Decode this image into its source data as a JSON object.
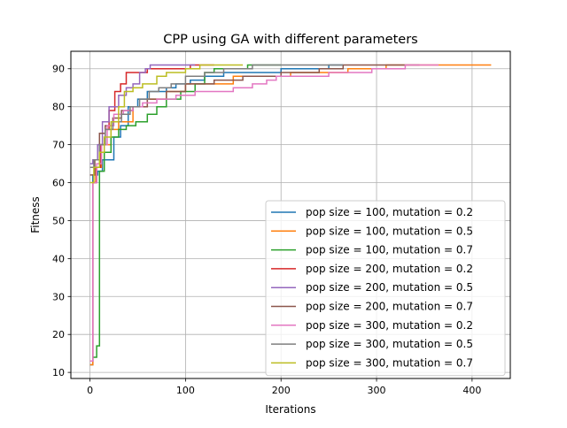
{
  "chart_data": {
    "type": "line",
    "title": "CPP using GA with  different parameters",
    "xlabel": "Iterations",
    "ylabel": "Fitness",
    "xlim": [
      -20,
      440
    ],
    "ylim": [
      8.4,
      94.6
    ],
    "xticks": [
      0,
      100,
      200,
      300,
      400
    ],
    "yticks": [
      10,
      20,
      30,
      40,
      50,
      60,
      70,
      80,
      90
    ],
    "grid": true,
    "legend_position": "lower right",
    "series": [
      {
        "name": "pop size = 100, mutation = 0.2",
        "color": "#1f77b4",
        "points": [
          [
            0,
            12
          ],
          [
            3,
            62
          ],
          [
            8,
            63
          ],
          [
            13,
            66
          ],
          [
            20,
            66
          ],
          [
            25,
            72
          ],
          [
            32,
            75
          ],
          [
            40,
            80
          ],
          [
            50,
            82
          ],
          [
            60,
            84
          ],
          [
            70,
            84
          ],
          [
            80,
            85
          ],
          [
            90,
            86
          ],
          [
            105,
            87
          ],
          [
            120,
            88
          ],
          [
            140,
            89
          ],
          [
            170,
            89
          ],
          [
            200,
            90
          ],
          [
            240,
            90
          ],
          [
            250,
            91
          ],
          [
            265,
            91
          ]
        ]
      },
      {
        "name": "pop size = 100, mutation = 0.5",
        "color": "#ff7f0e",
        "points": [
          [
            0,
            12
          ],
          [
            3,
            60
          ],
          [
            6,
            64
          ],
          [
            12,
            70
          ],
          [
            22,
            74
          ],
          [
            30,
            76
          ],
          [
            45,
            80
          ],
          [
            60,
            82
          ],
          [
            80,
            84
          ],
          [
            100,
            86
          ],
          [
            120,
            86
          ],
          [
            150,
            88
          ],
          [
            190,
            88
          ],
          [
            210,
            89
          ],
          [
            250,
            89
          ],
          [
            270,
            90
          ],
          [
            295,
            90
          ],
          [
            310,
            91
          ],
          [
            420,
            91
          ]
        ]
      },
      {
        "name": "pop size = 100, mutation = 0.7",
        "color": "#2ca02c",
        "points": [
          [
            0,
            13
          ],
          [
            3,
            14
          ],
          [
            7,
            17
          ],
          [
            10,
            63
          ],
          [
            15,
            68
          ],
          [
            22,
            72
          ],
          [
            30,
            74
          ],
          [
            38,
            75
          ],
          [
            48,
            76
          ],
          [
            60,
            78
          ],
          [
            70,
            80
          ],
          [
            80,
            82
          ],
          [
            95,
            84
          ],
          [
            110,
            86
          ],
          [
            120,
            89
          ],
          [
            130,
            90
          ],
          [
            150,
            90
          ],
          [
            165,
            91
          ],
          [
            200,
            91
          ]
        ]
      },
      {
        "name": "pop size = 200, mutation = 0.2",
        "color": "#d62728",
        "points": [
          [
            0,
            13
          ],
          [
            3,
            60
          ],
          [
            7,
            64
          ],
          [
            11,
            70
          ],
          [
            16,
            74
          ],
          [
            20,
            79
          ],
          [
            26,
            84
          ],
          [
            32,
            86
          ],
          [
            38,
            89
          ],
          [
            50,
            89
          ],
          [
            60,
            90
          ],
          [
            100,
            90
          ],
          [
            105,
            91
          ],
          [
            130,
            91
          ]
        ]
      },
      {
        "name": "pop size = 200, mutation = 0.5",
        "color": "#9467bd",
        "points": [
          [
            0,
            65
          ],
          [
            3,
            66
          ],
          [
            8,
            70
          ],
          [
            13,
            76
          ],
          [
            20,
            80
          ],
          [
            30,
            83
          ],
          [
            38,
            85
          ],
          [
            45,
            86
          ],
          [
            52,
            89
          ],
          [
            58,
            90
          ],
          [
            63,
            91
          ],
          [
            110,
            91
          ]
        ]
      },
      {
        "name": "pop size = 200, mutation = 0.7",
        "color": "#8c564b",
        "points": [
          [
            0,
            62
          ],
          [
            5,
            66
          ],
          [
            10,
            73
          ],
          [
            16,
            75
          ],
          [
            24,
            77
          ],
          [
            33,
            79
          ],
          [
            45,
            80
          ],
          [
            60,
            82
          ],
          [
            80,
            84
          ],
          [
            100,
            86
          ],
          [
            130,
            87
          ],
          [
            160,
            88
          ],
          [
            200,
            89
          ],
          [
            240,
            90
          ],
          [
            265,
            91
          ],
          [
            345,
            91
          ]
        ]
      },
      {
        "name": "pop size = 300, mutation = 0.2",
        "color": "#e377c2",
        "points": [
          [
            0,
            13
          ],
          [
            3,
            60
          ],
          [
            7,
            65
          ],
          [
            12,
            70
          ],
          [
            18,
            75
          ],
          [
            25,
            78
          ],
          [
            35,
            79
          ],
          [
            45,
            80
          ],
          [
            55,
            81
          ],
          [
            70,
            82
          ],
          [
            90,
            83
          ],
          [
            110,
            84
          ],
          [
            130,
            84
          ],
          [
            150,
            85
          ],
          [
            170,
            86
          ],
          [
            185,
            87
          ],
          [
            195,
            88
          ],
          [
            210,
            88
          ],
          [
            250,
            89
          ],
          [
            280,
            89
          ],
          [
            295,
            90
          ],
          [
            330,
            91
          ],
          [
            365,
            91
          ]
        ]
      },
      {
        "name": "pop size = 300, mutation = 0.5",
        "color": "#7f7f7f",
        "points": [
          [
            0,
            64
          ],
          [
            4,
            66
          ],
          [
            10,
            70
          ],
          [
            16,
            74
          ],
          [
            24,
            76
          ],
          [
            33,
            78
          ],
          [
            42,
            80
          ],
          [
            52,
            82
          ],
          [
            62,
            84
          ],
          [
            72,
            85
          ],
          [
            85,
            86
          ],
          [
            100,
            88
          ],
          [
            120,
            89
          ],
          [
            140,
            90
          ],
          [
            170,
            91
          ],
          [
            265,
            91
          ]
        ]
      },
      {
        "name": "pop size = 300, mutation = 0.7",
        "color": "#bcbd22",
        "points": [
          [
            0,
            60
          ],
          [
            4,
            64
          ],
          [
            10,
            68
          ],
          [
            15,
            72
          ],
          [
            22,
            76
          ],
          [
            30,
            80
          ],
          [
            36,
            84
          ],
          [
            45,
            85
          ],
          [
            55,
            86
          ],
          [
            70,
            88
          ],
          [
            80,
            89
          ],
          [
            100,
            90
          ],
          [
            115,
            91
          ],
          [
            160,
            91
          ]
        ]
      }
    ]
  }
}
